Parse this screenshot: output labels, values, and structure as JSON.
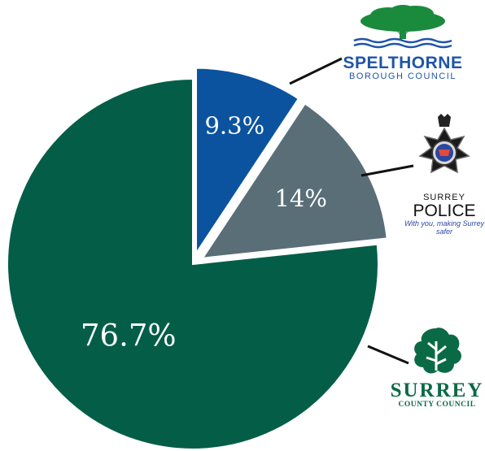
{
  "chart_data": {
    "type": "pie",
    "title": "",
    "slices": [
      {
        "name": "Spelthorne Borough Council",
        "label": "9.3%",
        "value": 9.3,
        "color": "#0b539f",
        "exploded": true
      },
      {
        "name": "Surrey Police",
        "label": "14%",
        "value": 14.0,
        "color": "#5a6e78",
        "exploded": true
      },
      {
        "name": "Surrey County Council",
        "label": "76.7%",
        "value": 76.7,
        "color": "#045e47",
        "exploded": false
      }
    ]
  },
  "logos": {
    "spelthorne": {
      "name": "SPELTHORNE",
      "sub": "BOROUGH COUNCIL",
      "icon": "oak-tree-river-icon",
      "color": "#1f55a6"
    },
    "police": {
      "top": "SURREY",
      "name": "POLICE",
      "tagline": "With you, making Surrey safer",
      "icon": "police-crest-icon"
    },
    "scc": {
      "name": "SURREY",
      "sub": "COUNTY COUNCIL",
      "icon": "oak-leaf-icon",
      "color": "#0a6a45"
    }
  }
}
